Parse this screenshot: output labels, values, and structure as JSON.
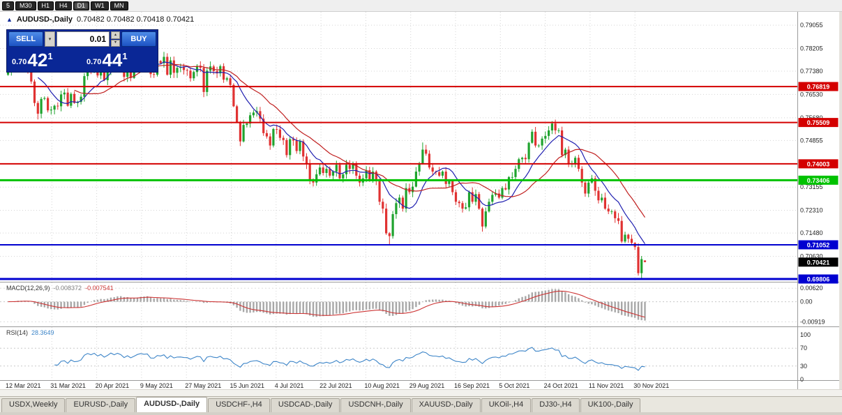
{
  "icons": {
    "collapse": "▲",
    "dropdown": "▾",
    "spin_up": "▴",
    "spin_down": "▾",
    "tab_left": "◄",
    "tab_right": "►"
  },
  "toolbar": {
    "timeframes": [
      {
        "label": "5",
        "active": false
      },
      {
        "label": "M30",
        "active": false
      },
      {
        "label": "H1",
        "active": false
      },
      {
        "label": "H4",
        "active": false
      },
      {
        "label": "D1",
        "active": true
      },
      {
        "label": "W1",
        "active": false
      },
      {
        "label": "MN",
        "active": false
      }
    ]
  },
  "chart_header": {
    "title": "AUDUSD-,Daily",
    "ohlc": "0.70482 0.70482 0.70418 0.70421"
  },
  "trade_panel": {
    "sell_label": "SELL",
    "buy_label": "BUY",
    "volume": "0.01",
    "bid_small": "0.70",
    "bid_big": "42",
    "bid_sup": "1",
    "ask_small": "0.70",
    "ask_big": "44",
    "ask_sup": "1"
  },
  "colors": {
    "candle_up": "#1fa32e",
    "candle_down": "#e03232",
    "ma_fast": "#2020b0",
    "ma_slow": "#c02020",
    "macd_histogram": "#a8a8a8",
    "macd_signal": "#cc3333",
    "rsi_line": "#3d85c8",
    "grid": "#d4d4d4",
    "panel_border": "#9a9a9a",
    "axis_text": "#222222",
    "current_tag": "#000000",
    "trade_panel_bg": "#0a2796",
    "trade_button": "#2a6ce0"
  },
  "chart_data": {
    "type": "candlestick",
    "symbol": "AUDUSD-",
    "timeframe": "Daily",
    "current": {
      "open": 0.70482,
      "high": 0.70482,
      "low": 0.70418,
      "close": 0.70421,
      "bid": 0.70421,
      "ask": 0.70441
    },
    "current_tag": {
      "price": 0.70421,
      "label": "0.70421"
    },
    "plot": {
      "price_top": 0.7954,
      "price_bottom": 0.6973
    },
    "y_ticks": [
      0.79055,
      0.78205,
      0.7738,
      0.7653,
      0.7568,
      0.74855,
      0.74005,
      0.73155,
      0.7231,
      0.7148,
      0.7063,
      0.6978
    ],
    "x_labels": [
      "12 Mar 2021",
      "31 Mar 2021",
      "20 Apr 2021",
      "9 May 2021",
      "27 May 2021",
      "15 Jun 2021",
      "4 Jul 2021",
      "22 Jul 2021",
      "10 Aug 2021",
      "29 Aug 2021",
      "16 Sep 2021",
      "5 Oct 2021",
      "24 Oct 2021",
      "11 Nov 2021",
      "30 Nov 2021"
    ],
    "hlines": [
      {
        "price": 0.76819,
        "label": "0.76819",
        "color": "#d40000",
        "width": 2
      },
      {
        "price": 0.75509,
        "label": "0.75509",
        "color": "#d40000",
        "width": 2
      },
      {
        "price": 0.74003,
        "label": "0.74003",
        "color": "#d40000",
        "width": 2
      },
      {
        "price": 0.73406,
        "label": "0.73406",
        "color": "#00c200",
        "width": 3
      },
      {
        "price": 0.71052,
        "label": "0.71052",
        "color": "#0000d0",
        "width": 2
      },
      {
        "price": 0.69806,
        "label": "0.69806",
        "color": "#0000d0",
        "width": 3
      }
    ],
    "ma": [
      {
        "period": 10,
        "color": "#2020b0"
      },
      {
        "period": 21,
        "color": "#c02020"
      }
    ],
    "first_open": 0.7725,
    "wick_seed": 7,
    "closes": [
      0.7736,
      0.775,
      0.7746,
      0.7772,
      0.7758,
      0.7742,
      0.774,
      0.77,
      0.7622,
      0.7583,
      0.7637,
      0.764,
      0.7595,
      0.7598,
      0.7612,
      0.761,
      0.7653,
      0.766,
      0.7612,
      0.7655,
      0.7622,
      0.7626,
      0.7645,
      0.772,
      0.7755,
      0.7736,
      0.7765,
      0.7722,
      0.7752,
      0.7705,
      0.774,
      0.779,
      0.7762,
      0.7795,
      0.7772,
      0.7717,
      0.7755,
      0.7713,
      0.7747,
      0.7785,
      0.7805,
      0.7795,
      0.78,
      0.7727,
      0.7725,
      0.7775,
      0.7767,
      0.779,
      0.7725,
      0.7777,
      0.7732,
      0.775,
      0.7752,
      0.7742,
      0.774,
      0.7712,
      0.7735,
      0.7757,
      0.775,
      0.7662,
      0.774,
      0.7755,
      0.7738,
      0.773,
      0.7756,
      0.7707,
      0.7712,
      0.7688,
      0.761,
      0.7552,
      0.7482,
      0.7542,
      0.7547,
      0.7577,
      0.7587,
      0.7592,
      0.7565,
      0.7512,
      0.75,
      0.7467,
      0.7527,
      0.7525,
      0.7495,
      0.7487,
      0.7432,
      0.749,
      0.7485,
      0.7447,
      0.7482,
      0.7427,
      0.74,
      0.7337,
      0.7332,
      0.7362,
      0.7387,
      0.7367,
      0.7382,
      0.7357,
      0.7372,
      0.7397,
      0.7347,
      0.7362,
      0.7397,
      0.7382,
      0.7402,
      0.7357,
      0.7332,
      0.7347,
      0.7377,
      0.7342,
      0.7372,
      0.7337,
      0.7262,
      0.7237,
      0.7147,
      0.7137,
      0.7217,
      0.7257,
      0.7277,
      0.7237,
      0.7312,
      0.7297,
      0.7317,
      0.7372,
      0.7402,
      0.7452,
      0.7437,
      0.7387,
      0.7372,
      0.737,
      0.7357,
      0.7372,
      0.7327,
      0.7337,
      0.7297,
      0.7262,
      0.7257,
      0.7237,
      0.7242,
      0.7297,
      0.7262,
      0.729,
      0.7237,
      0.7172,
      0.7227,
      0.7262,
      0.7287,
      0.7292,
      0.7277,
      0.7312,
      0.7307,
      0.7352,
      0.7352,
      0.7382,
      0.7417,
      0.7422,
      0.7417,
      0.7477,
      0.7517,
      0.7467,
      0.7467,
      0.7492,
      0.7502,
      0.7522,
      0.7547,
      0.7522,
      0.7522,
      0.7432,
      0.7452,
      0.7402,
      0.7402,
      0.7422,
      0.7382,
      0.7332,
      0.7292,
      0.7332,
      0.7347,
      0.7302,
      0.7267,
      0.7277,
      0.7237,
      0.7227,
      0.7227,
      0.7202,
      0.7192,
      0.7117,
      0.7142,
      0.7127,
      0.7112,
      0.7097,
      0.7002,
      0.7053,
      0.70421
    ],
    "overrides": {
      "9": {
        "l": 0.7562
      },
      "115": {
        "l": 0.7106
      },
      "125": {
        "h": 0.7478
      },
      "164": {
        "h": 0.7556
      },
      "190": {
        "l": 0.6993
      },
      "192": {
        "o": 0.70482,
        "h": 0.70482,
        "l": 0.70418,
        "c": 0.70421
      }
    }
  },
  "indicators": {
    "macd": {
      "label": "MACD(12,26,9)",
      "value1": "-0.008372",
      "value2": "-0.007541",
      "fast": 12,
      "slow": 26,
      "signal": 9,
      "range": {
        "top": 0.0085,
        "bottom": -0.011
      },
      "axis": [
        {
          "v": 0.0062,
          "label": "0.00620"
        },
        {
          "v": 0.0,
          "label": "0.00"
        },
        {
          "v": -0.00919,
          "label": "-0.00919"
        }
      ]
    },
    "rsi": {
      "label": "RSI(14)",
      "value": "28.3649",
      "period": 14,
      "levels": [
        70,
        30
      ],
      "axis": [
        {
          "v": 100,
          "label": "100"
        },
        {
          "v": 70,
          "label": "70"
        },
        {
          "v": 30,
          "label": "30"
        },
        {
          "v": 0,
          "label": "0"
        }
      ]
    }
  },
  "tabs": {
    "items": [
      {
        "label": "USDX,Weekly",
        "active": false
      },
      {
        "label": "EURUSD-,Daily",
        "active": false
      },
      {
        "label": "AUDUSD-,Daily",
        "active": true
      },
      {
        "label": "USDCHF-,H4",
        "active": false
      },
      {
        "label": "USDCAD-,Daily",
        "active": false
      },
      {
        "label": "USDCNH-,Daily",
        "active": false
      },
      {
        "label": "XAUUSD-,Daily",
        "active": false
      },
      {
        "label": "UKOil-,H4",
        "active": false
      },
      {
        "label": "DJ30-,H4",
        "active": false
      },
      {
        "label": "UK100-,Daily",
        "active": false
      }
    ]
  }
}
